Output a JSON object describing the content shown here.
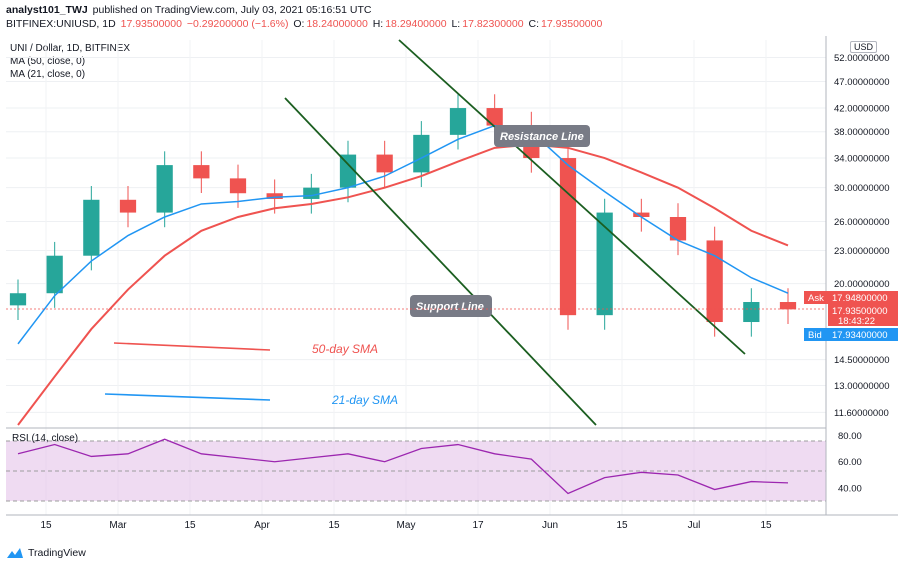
{
  "header": {
    "publisher": "analyst101_TWJ",
    "published_text": "published on TradingView.com, July 03, 2021 05:16:51 UTC",
    "symbol": "BITFINEX:UNIUSD, 1D",
    "price": "17.93500000",
    "change": "−0.29200000 (−1.6%)",
    "o_label": "O:",
    "o": "18.24000000",
    "h_label": "H:",
    "h": "18.29400000",
    "l_label": "L:",
    "l": "17.82300000",
    "c_label": "C:",
    "c": "17.93500000"
  },
  "legend": {
    "title": "UNI / Dollar, 1D, BITFINEX",
    "ma50": "MA (50, close, 0)",
    "ma21": "MA (21, close, 0)"
  },
  "currency": "USD",
  "price_axis": [
    "52.00000000",
    "47.00000000",
    "42.00000000",
    "38.00000000",
    "34.00000000",
    "30.00000000",
    "26.00000000",
    "23.00000000",
    "20.00000000",
    "14.50000000",
    "13.00000000",
    "11.60000000"
  ],
  "rsi_axis": [
    "80.00",
    "60.00",
    "40.00"
  ],
  "time_axis": [
    "15",
    "Mar",
    "15",
    "Apr",
    "15",
    "May",
    "17",
    "Jun",
    "15",
    "Jul",
    "15"
  ],
  "ask": {
    "label": "Ask",
    "value": "17.94800000"
  },
  "last": {
    "value": "17.93500000",
    "timer": "18:43:22"
  },
  "bid": {
    "label": "Bid",
    "value": "17.93400000"
  },
  "rsi_legend": "RSI (14, close)",
  "annotations": {
    "resistance": "Resistance Line",
    "support": "Support Line",
    "sma50": "50-day SMA",
    "sma21": "21-day SMA"
  },
  "footer": {
    "brand": "TradingView"
  },
  "colors": {
    "up": "#26a69a",
    "down": "#ef5350",
    "ma21": "#2196f3",
    "ma50": "#ef5350",
    "rsi": "#9c27b0",
    "trend": "#1b5e20",
    "ask": "#ef5350",
    "bid": "#2196f3"
  },
  "chart_data": {
    "type": "candlestick",
    "title": "UNI / Dollar, 1D, BITFINEX",
    "ylabel": "USD",
    "y_scale": "log",
    "ylim": [
      11.0,
      56.0
    ],
    "rsi_ylim": [
      22,
      84
    ],
    "x": [
      "Feb 4",
      "Feb 11",
      "Feb 18",
      "Feb 25",
      "Mar 4",
      "Mar 11",
      "Mar 18",
      "Mar 25",
      "Apr 1",
      "Apr 8",
      "Apr 15",
      "Apr 22",
      "Apr 29",
      "May 6",
      "May 13",
      "May 20",
      "May 27",
      "Jun 3",
      "Jun 10",
      "Jun 17",
      "Jun 24",
      "Jul 3"
    ],
    "close": [
      19.2,
      22.5,
      28.5,
      27.0,
      33.0,
      31.2,
      29.3,
      28.6,
      30.0,
      34.5,
      32.0,
      37.5,
      42.0,
      39.0,
      34.0,
      17.5,
      27.0,
      26.5,
      24.0,
      17.0,
      18.5,
      17.935
    ],
    "ma21": [
      15.5,
      19.0,
      22.0,
      24.5,
      26.5,
      28.0,
      28.3,
      28.8,
      29.0,
      30.0,
      31.5,
      34.0,
      36.8,
      39.0,
      38.0,
      33.0,
      29.5,
      26.5,
      24.0,
      22.5,
      20.5,
      19.2
    ],
    "ma50": [
      10.5,
      13.5,
      16.5,
      19.5,
      22.5,
      25.0,
      26.5,
      27.5,
      28.0,
      28.8,
      30.0,
      31.5,
      33.5,
      35.5,
      36.0,
      35.5,
      34.0,
      32.0,
      30.0,
      27.5,
      25.0,
      23.5
    ],
    "rsi": [
      66,
      73,
      64,
      66,
      77,
      66,
      63,
      60,
      63,
      66,
      60,
      70,
      73,
      66,
      62,
      36,
      48,
      52,
      50,
      39,
      45,
      44
    ],
    "series": [
      {
        "name": "MA (21, close, 0)"
      },
      {
        "name": "MA (50, close, 0)"
      },
      {
        "name": "RSI (14, close)"
      }
    ]
  }
}
